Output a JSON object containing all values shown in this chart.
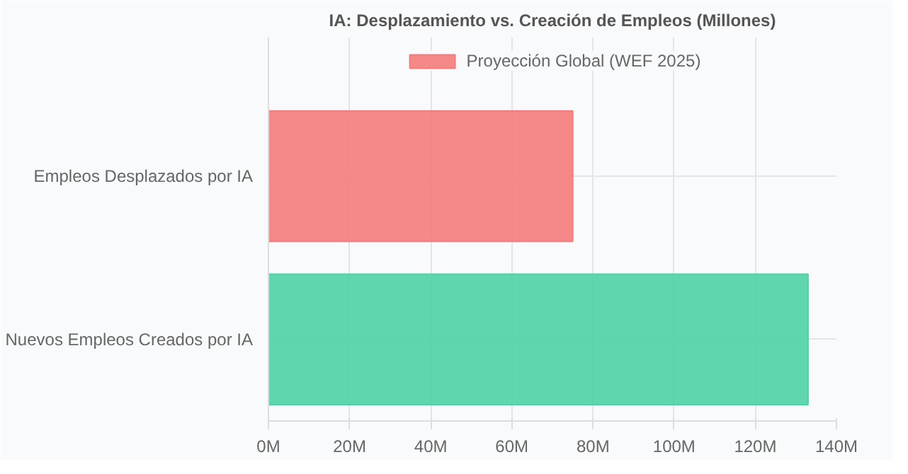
{
  "chart_data": {
    "type": "bar",
    "orientation": "horizontal",
    "title": "IA: Desplazamiento vs. Creación de Empleos (Millones)",
    "categories": [
      "Empleos Desplazados por IA",
      "Nuevos Empleos Creados por IA"
    ],
    "series": [
      {
        "name": "Proyección Global (WEF 2025)",
        "colors": [
          "#f47c7c",
          "#4fd1a5"
        ],
        "values": [
          75,
          133
        ]
      }
    ],
    "xlim": [
      0,
      140
    ],
    "xticks": [
      {
        "value": 0,
        "label": "0M"
      },
      {
        "value": 20,
        "label": "20M"
      },
      {
        "value": 40,
        "label": "40M"
      },
      {
        "value": 60,
        "label": "60M"
      },
      {
        "value": 80,
        "label": "80M"
      },
      {
        "value": 100,
        "label": "100M"
      },
      {
        "value": 120,
        "label": "120M"
      },
      {
        "value": 140,
        "label": "140M"
      }
    ],
    "grid": true,
    "legend": "top"
  }
}
